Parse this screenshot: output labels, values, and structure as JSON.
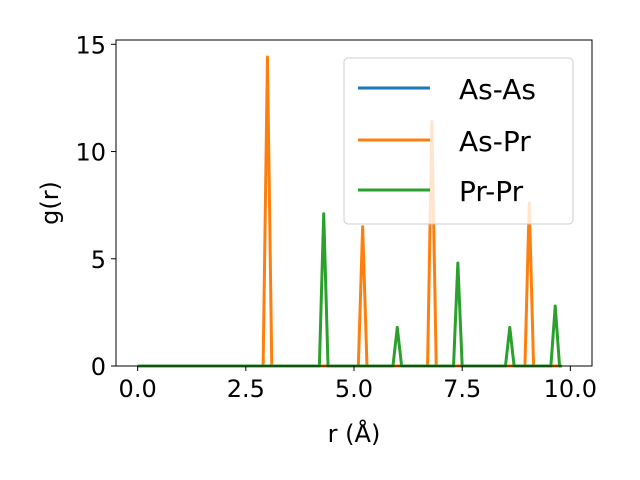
{
  "chart_data": {
    "type": "line",
    "xlabel": "r (Å)",
    "ylabel": "g(r)",
    "xlim": [
      -0.5,
      10.5
    ],
    "ylim": [
      0,
      15.2
    ],
    "xticks": [
      0.0,
      2.5,
      5.0,
      7.5,
      10.0
    ],
    "xtick_labels": [
      "0.0",
      "2.5",
      "5.0",
      "7.5",
      "10.0"
    ],
    "yticks": [
      0,
      5,
      10,
      15
    ],
    "ytick_labels": [
      "0",
      "5",
      "10",
      "15"
    ],
    "grid": false,
    "legend": "top-right",
    "series": [
      {
        "name": "As-As",
        "color": "#1f77b4",
        "x": [
          0.0,
          9.8
        ],
        "y": [
          0,
          0
        ]
      },
      {
        "name": "As-Pr",
        "color": "#ff7f0e",
        "x": [
          0.0,
          2.9,
          3.0,
          3.1,
          5.1,
          5.2,
          5.3,
          6.7,
          6.8,
          6.9,
          8.95,
          9.05,
          9.15,
          9.8
        ],
        "y": [
          0,
          0,
          14.4,
          0,
          0,
          6.5,
          0,
          0,
          11.4,
          0,
          0,
          7.6,
          0,
          0
        ]
      },
      {
        "name": "Pr-Pr",
        "color": "#2ca02c",
        "x": [
          0.0,
          4.2,
          4.3,
          4.4,
          5.9,
          6.0,
          6.1,
          7.3,
          7.4,
          7.5,
          8.5,
          8.6,
          8.7,
          9.55,
          9.65,
          9.75,
          9.8
        ],
        "y": [
          0,
          0,
          7.1,
          0,
          0,
          1.8,
          0,
          0,
          4.8,
          0,
          0,
          1.8,
          0,
          0,
          2.8,
          0,
          0
        ]
      }
    ]
  }
}
